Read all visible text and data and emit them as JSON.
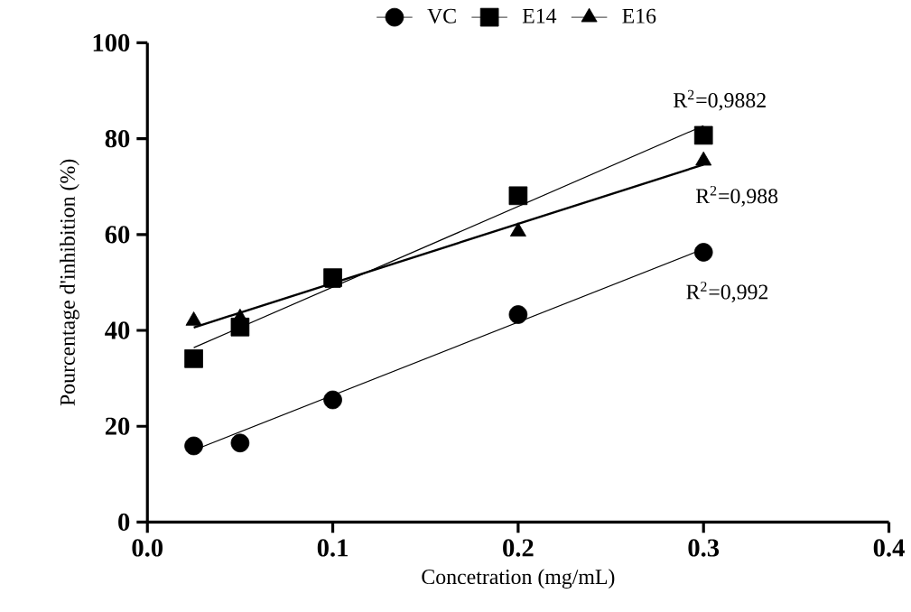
{
  "chart_data": {
    "type": "scatter",
    "xlabel": "Concetration (mg/mL)",
    "ylabel": "Pourcentage d'inhibition (%)",
    "xlim": [
      0,
      0.4
    ],
    "ylim": [
      0,
      100
    ],
    "xticks": [
      {
        "value": 0,
        "label": "0.0"
      },
      {
        "value": 0.1,
        "label": "0.1"
      },
      {
        "value": 0.2,
        "label": "0.2"
      },
      {
        "value": 0.3,
        "label": "0.3"
      },
      {
        "value": 0.4,
        "label": "0.4"
      }
    ],
    "yticks": [
      0,
      20,
      40,
      60,
      80,
      100
    ],
    "legend": "top",
    "grid": false,
    "series": [
      {
        "name": "VC",
        "color": "#000000",
        "marker": "circle",
        "x": [
          0.025,
          0.05,
          0.1,
          0.2,
          0.3
        ],
        "values": [
          15.9,
          16.5,
          25.5,
          43.3,
          56.3
        ]
      },
      {
        "name": "E14",
        "color": "#000000",
        "marker": "square",
        "x": [
          0.025,
          0.05,
          0.1,
          0.2,
          0.3
        ],
        "values": [
          34.1,
          40.7,
          51.0,
          68.1,
          80.7
        ]
      },
      {
        "name": "E16",
        "color": "#000000",
        "marker": "triangle",
        "x": [
          0.025,
          0.05,
          0.1,
          0.2,
          0.3
        ],
        "values": [
          42.0,
          42.6,
          49.9,
          60.6,
          75.4
        ]
      },
      {
        "type": "line",
        "color": "#000000",
        "marker": "none",
        "line_style": "solid",
        "x": [
          0.025,
          0.3
        ],
        "values": [
          15.0,
          57.0
        ]
      },
      {
        "type": "line",
        "color": "#000000",
        "marker": "none",
        "line_style": "solid",
        "x": [
          0.025,
          0.3
        ],
        "values": [
          36.4,
          82.7
        ]
      },
      {
        "type": "line",
        "color": "#000000",
        "marker": "none",
        "line_style": "solid",
        "x": [
          0.025,
          0.3
        ],
        "values": [
          40.6,
          74.6
        ]
      }
    ],
    "annotations": [
      "R$^{2}$=0,9882",
      "R$^{2}$=0,988",
      "R$^{2}$=0,992"
    ]
  }
}
